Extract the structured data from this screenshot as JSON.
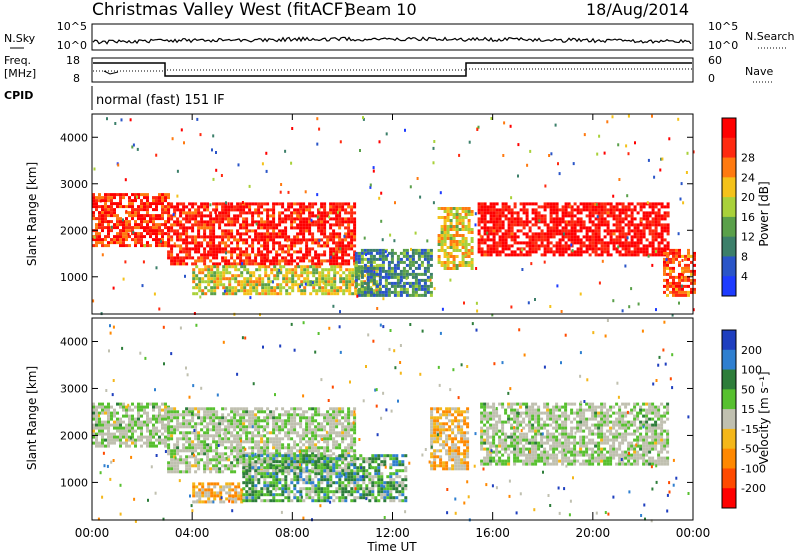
{
  "header": {
    "title": "Christmas Valley West (fitACF)",
    "beam": "Beam 10",
    "date": "18/Aug/2014"
  },
  "status_panels": {
    "nsky_label": "N.Sky",
    "nsky_ticks": [
      "10^5",
      "10^0"
    ],
    "nsearch_label": "N.Search",
    "nsearch_ticks": [
      "10^5",
      "10^0"
    ],
    "freq_label_1": "Freq.",
    "freq_label_2": "[MHz]",
    "freq_ticks": [
      "18",
      "8"
    ],
    "nave_label": "Nave",
    "nave_ticks": [
      "60",
      "0"
    ],
    "cpid_label": "CPID",
    "cpid_text": "normal (fast) 151 IF"
  },
  "colors": {
    "power_scale": [
      "#1e3cff",
      "#2a55c8",
      "#3c7f6a",
      "#5aa04a",
      "#a9d13a",
      "#f4c21a",
      "#ff7a10",
      "#ff2a10",
      "#ff0000"
    ],
    "velocity_scale": [
      "#1f3fbf",
      "#2f7fd0",
      "#2d7d3a",
      "#57c02f",
      "#c0c0b0",
      "#f4b71a",
      "#ff8800",
      "#ff4a00",
      "#ff0000"
    ],
    "ground_scatter": "#c8c8c0"
  },
  "chart_data": [
    {
      "type": "heatmap",
      "panel": "power",
      "xlabel": "",
      "ylabel": "Slant Range [km]",
      "xlim": [
        0,
        24
      ],
      "ylim": [
        200,
        4500
      ],
      "yticks": [
        "1000",
        "2000",
        "3000",
        "4000"
      ],
      "colorbar": {
        "label": "Power [dB]",
        "ticks": [
          "4",
          "8",
          "12",
          "16",
          "20",
          "24",
          "28"
        ]
      },
      "regions": [
        {
          "t0": 0.0,
          "t1": 3.0,
          "r0": 1700,
          "r1": 2800,
          "level": 0.85
        },
        {
          "t0": 3.0,
          "t1": 10.5,
          "r0": 1250,
          "r1": 2600,
          "level": 0.9
        },
        {
          "t0": 4.0,
          "t1": 11.5,
          "r0": 650,
          "r1": 1250,
          "level": 0.55
        },
        {
          "t0": 10.5,
          "t1": 13.5,
          "r0": 600,
          "r1": 1600,
          "level": 0.3
        },
        {
          "t0": 13.8,
          "t1": 15.2,
          "r0": 1200,
          "r1": 2500,
          "level": 0.6
        },
        {
          "t0": 15.4,
          "t1": 23.0,
          "r0": 1500,
          "r1": 2600,
          "level": 0.95
        },
        {
          "t0": 22.8,
          "t1": 24.0,
          "r0": 600,
          "r1": 1600,
          "level": 0.8
        }
      ]
    },
    {
      "type": "heatmap",
      "panel": "velocity",
      "xlabel": "Time UT",
      "ylabel": "Slant Range [km]",
      "xlim": [
        0,
        24
      ],
      "ylim": [
        200,
        4500
      ],
      "xticks": [
        "00:00",
        "04:00",
        "08:00",
        "12:00",
        "16:00",
        "20:00",
        "00:00"
      ],
      "yticks": [
        "1000",
        "2000",
        "3000",
        "4000"
      ],
      "colorbar": {
        "label": "Velocity [m s⁻¹]",
        "ticks": [
          "200",
          "100",
          "50",
          "15",
          "-15",
          "-50",
          "-100",
          "-200"
        ]
      },
      "regions": [
        {
          "t0": 0.0,
          "t1": 3.0,
          "r0": 1800,
          "r1": 2700,
          "level": 0.5
        },
        {
          "t0": 3.0,
          "t1": 10.5,
          "r0": 1250,
          "r1": 2600,
          "level": 0.5
        },
        {
          "t0": 4.0,
          "t1": 6.0,
          "r0": 600,
          "r1": 1000,
          "level": 0.3
        },
        {
          "t0": 6.0,
          "t1": 12.5,
          "r0": 600,
          "r1": 1600,
          "level": 0.65
        },
        {
          "t0": 13.5,
          "t1": 15.0,
          "r0": 1300,
          "r1": 2600,
          "level": 0.3
        },
        {
          "t0": 15.5,
          "t1": 23.0,
          "r0": 1400,
          "r1": 2700,
          "level": 0.5
        }
      ]
    }
  ]
}
